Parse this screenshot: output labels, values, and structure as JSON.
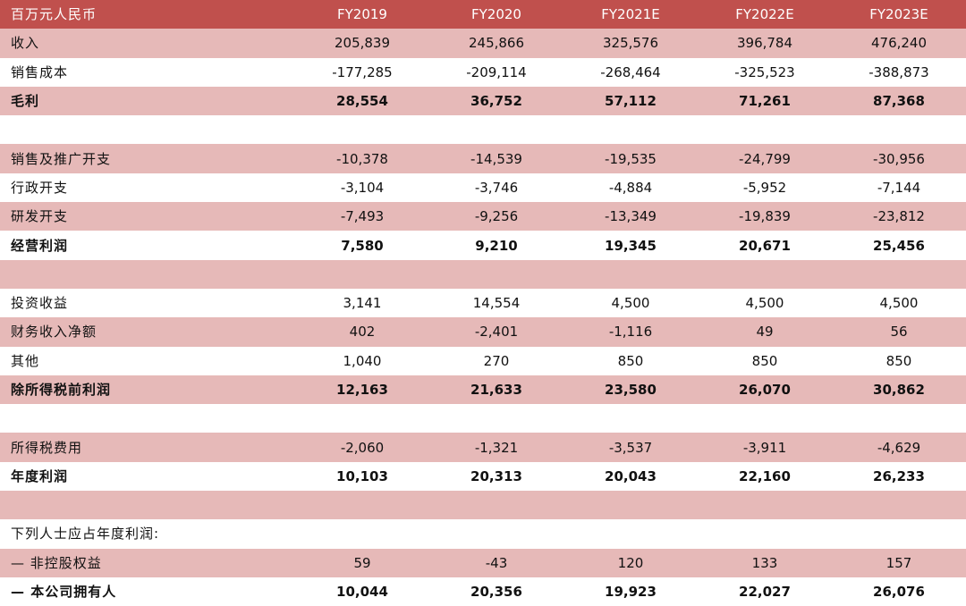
{
  "table": {
    "header": [
      "百万元人民币",
      "FY2019",
      "FY2020",
      "FY2021E",
      "FY2022E",
      "FY2023E"
    ],
    "rows": [
      {
        "label": "收入",
        "values": [
          "205,839",
          "245,866",
          "325,576",
          "396,784",
          "476,240"
        ],
        "shade": "pink",
        "bold": false
      },
      {
        "label": "销售成本",
        "values": [
          "-177,285",
          "-209,114",
          "-268,464",
          "-325,523",
          "-388,873"
        ],
        "shade": "white",
        "bold": false
      },
      {
        "label": "毛利",
        "values": [
          "28,554",
          "36,752",
          "57,112",
          "71,261",
          "87,368"
        ],
        "shade": "pink",
        "bold": true
      },
      {
        "label": "",
        "values": [
          "",
          "",
          "",
          "",
          ""
        ],
        "shade": "white",
        "bold": false
      },
      {
        "label": "销售及推广开支",
        "values": [
          "-10,378",
          "-14,539",
          "-19,535",
          "-24,799",
          "-30,956"
        ],
        "shade": "pink",
        "bold": false
      },
      {
        "label": "行政开支",
        "values": [
          "-3,104",
          "-3,746",
          "-4,884",
          "-5,952",
          "-7,144"
        ],
        "shade": "white",
        "bold": false
      },
      {
        "label": "研发开支",
        "values": [
          "-7,493",
          "-9,256",
          "-13,349",
          "-19,839",
          "-23,812"
        ],
        "shade": "pink",
        "bold": false
      },
      {
        "label": "经营利润",
        "values": [
          "7,580",
          "9,210",
          "19,345",
          "20,671",
          "25,456"
        ],
        "shade": "white",
        "bold": true
      },
      {
        "label": "",
        "values": [
          "",
          "",
          "",
          "",
          ""
        ],
        "shade": "pink",
        "bold": false
      },
      {
        "label": "投资收益",
        "values": [
          "3,141",
          "14,554",
          "4,500",
          "4,500",
          "4,500"
        ],
        "shade": "white",
        "bold": false
      },
      {
        "label": "财务收入净额",
        "values": [
          "402",
          "-2,401",
          "-1,116",
          "49",
          "56"
        ],
        "shade": "pink",
        "bold": false
      },
      {
        "label": "其他",
        "values": [
          "1,040",
          "270",
          "850",
          "850",
          "850"
        ],
        "shade": "white",
        "bold": false
      },
      {
        "label": "除所得税前利润",
        "values": [
          "12,163",
          "21,633",
          "23,580",
          "26,070",
          "30,862"
        ],
        "shade": "pink",
        "bold": true
      },
      {
        "label": "",
        "values": [
          "",
          "",
          "",
          "",
          ""
        ],
        "shade": "white",
        "bold": false
      },
      {
        "label": "所得税费用",
        "values": [
          "-2,060",
          "-1,321",
          "-3,537",
          "-3,911",
          "-4,629"
        ],
        "shade": "pink",
        "bold": false
      },
      {
        "label": "年度利润",
        "values": [
          "10,103",
          "20,313",
          "20,043",
          "22,160",
          "26,233"
        ],
        "shade": "white",
        "bold": true
      },
      {
        "label": "",
        "values": [
          "",
          "",
          "",
          "",
          ""
        ],
        "shade": "pink",
        "bold": false
      },
      {
        "label": "下列人士应占年度利润:",
        "values": [
          "",
          "",
          "",
          "",
          ""
        ],
        "shade": "white",
        "bold": false
      },
      {
        "label": "— 非控股权益",
        "values": [
          "59",
          "-43",
          "120",
          "133",
          "157"
        ],
        "shade": "pink",
        "bold": false
      },
      {
        "label": "— 本公司拥有人",
        "values": [
          "10,044",
          "20,356",
          "19,923",
          "22,027",
          "26,076"
        ],
        "shade": "white",
        "bold": true
      }
    ]
  },
  "colors": {
    "header_bg": "#c0504d",
    "header_text": "#ffffff",
    "band_pink": "#e6b9b8",
    "band_white": "#ffffff"
  }
}
